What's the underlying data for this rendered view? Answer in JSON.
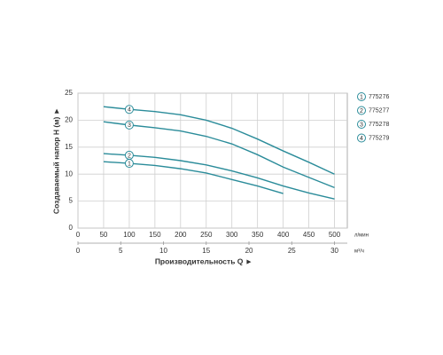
{
  "chart_data": {
    "type": "line",
    "y_label": "Создаваемый напор H (м) ►",
    "x_label": "Производительность Q ►",
    "x_unit": "л/мин",
    "x2_unit": "м³/ч",
    "x": [
      50,
      100,
      150,
      200,
      250,
      300,
      350,
      400,
      450,
      500
    ],
    "series": [
      {
        "label": "1",
        "name": "775276",
        "color": "#2b8c9a",
        "values": [
          12.3,
          12,
          11.6,
          11,
          10.2,
          9,
          7.8,
          6.4,
          null,
          null
        ]
      },
      {
        "label": "2",
        "name": "775277",
        "color": "#2b8c9a",
        "values": [
          13.8,
          13.5,
          13.1,
          12.5,
          11.7,
          10.6,
          9.3,
          7.8,
          6.5,
          5.4
        ]
      },
      {
        "label": "3",
        "name": "775278",
        "color": "#2b8c9a",
        "values": [
          19.7,
          19.1,
          18.6,
          18,
          17,
          15.6,
          13.6,
          11.3,
          9.4,
          7.5
        ]
      },
      {
        "label": "4",
        "name": "775279",
        "color": "#2b8c9a",
        "values": [
          22.5,
          22,
          21.6,
          21,
          20,
          18.5,
          16.5,
          14.3,
          12.2,
          10
        ]
      }
    ],
    "xlim": [
      0,
      525
    ],
    "xticks": [
      0,
      50,
      100,
      150,
      200,
      250,
      300,
      350,
      400,
      450,
      500
    ],
    "x2lim": [
      0,
      31.5
    ],
    "x2ticks": [
      0,
      5,
      10,
      15,
      20,
      25,
      30
    ],
    "ylim": [
      0,
      25
    ],
    "yticks": [
      0,
      5,
      10,
      15,
      20,
      25
    ],
    "grid": true,
    "legend": "right"
  }
}
